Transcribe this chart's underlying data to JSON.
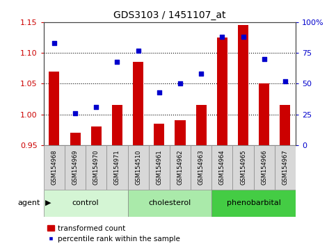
{
  "title": "GDS3103 / 1451107_at",
  "categories": [
    "GSM154968",
    "GSM154969",
    "GSM154970",
    "GSM154971",
    "GSM154510",
    "GSM154961",
    "GSM154962",
    "GSM154963",
    "GSM154964",
    "GSM154965",
    "GSM154966",
    "GSM154967"
  ],
  "bar_values": [
    1.07,
    0.97,
    0.98,
    1.015,
    1.085,
    0.985,
    0.99,
    1.015,
    1.125,
    1.145,
    1.05,
    1.015
  ],
  "dot_values": [
    83,
    26,
    31,
    68,
    77,
    43,
    50,
    58,
    88,
    88,
    70,
    52
  ],
  "ylim_left": [
    0.95,
    1.15
  ],
  "ylim_right": [
    0,
    100
  ],
  "yticks_left": [
    0.95,
    1.0,
    1.05,
    1.1,
    1.15
  ],
  "yticks_right": [
    0,
    25,
    50,
    75,
    100
  ],
  "ytick_labels_right": [
    "0",
    "25",
    "50",
    "75",
    "100%"
  ],
  "bar_color": "#cc0000",
  "dot_color": "#0000cc",
  "bar_base": 0.95,
  "groups": [
    {
      "label": "control",
      "start": 0,
      "end": 3,
      "color": "#d4f5d4"
    },
    {
      "label": "cholesterol",
      "start": 4,
      "end": 7,
      "color": "#aaeaaa"
    },
    {
      "label": "phenobarbital",
      "start": 8,
      "end": 11,
      "color": "#44cc44"
    }
  ],
  "agent_label": "agent",
  "legend_bar_label": "transformed count",
  "legend_dot_label": "percentile rank within the sample",
  "title_color": "#000000",
  "tick_label_color_left": "#cc0000",
  "tick_label_color_right": "#0000cc",
  "grid_lines": [
    1.0,
    1.05,
    1.1
  ],
  "sample_box_color": "#d8d8d8",
  "sample_box_edge": "#888888",
  "plot_bg": "#ffffff",
  "spine_color": "#444444"
}
